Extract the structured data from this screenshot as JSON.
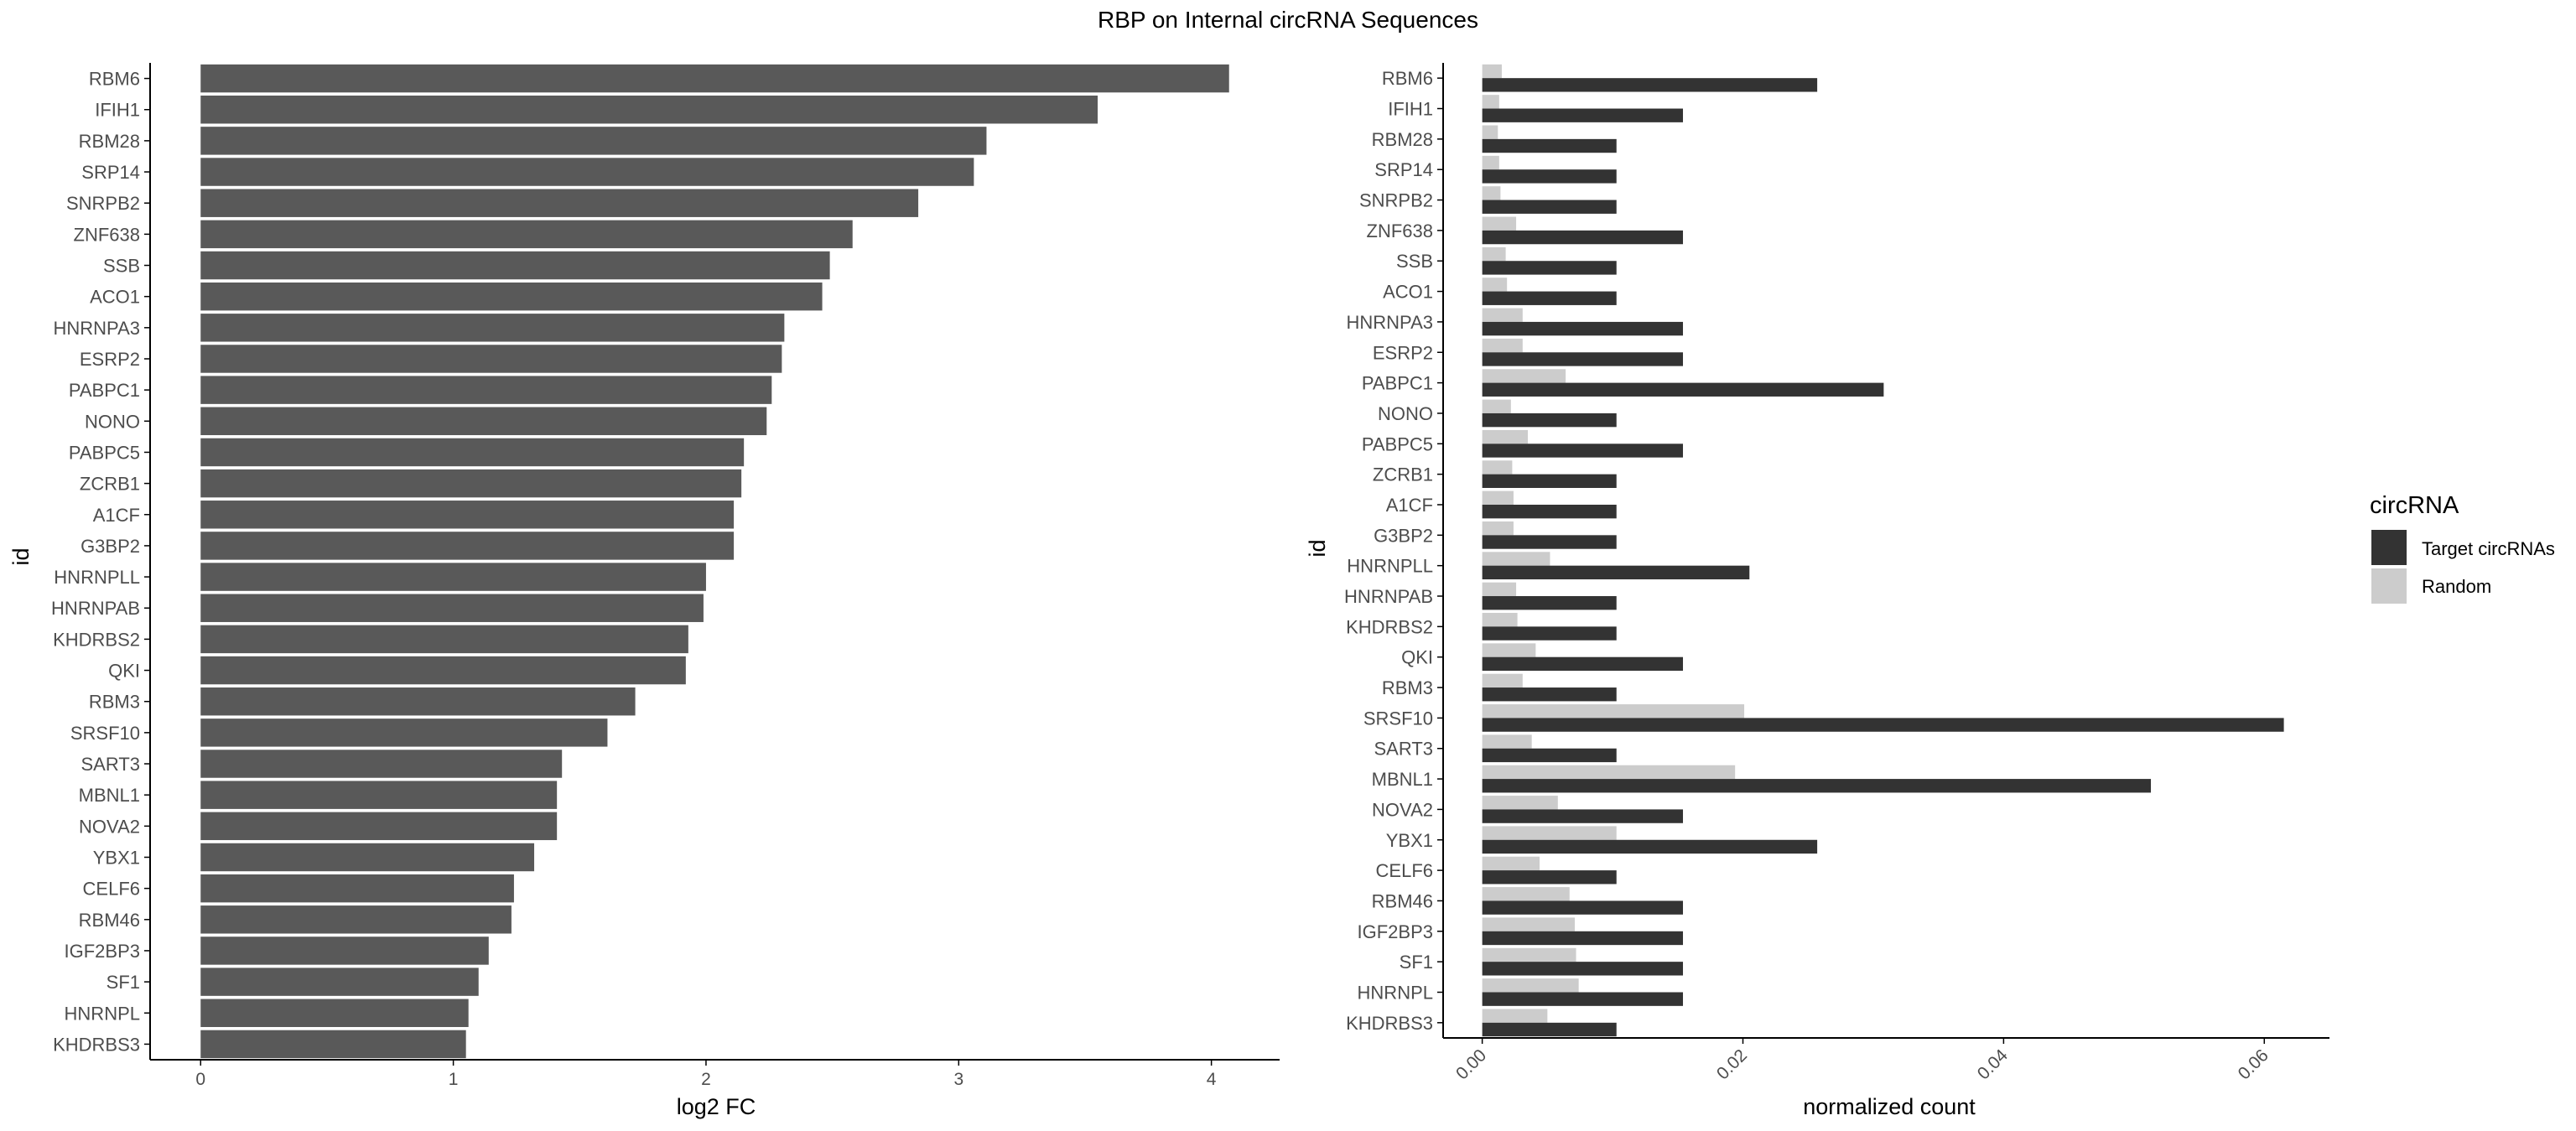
{
  "title": "RBP on Internal circRNA Sequences",
  "colors": {
    "bar_left": "#595959",
    "target": "#333333",
    "random": "#cccccc",
    "axis": "#000000",
    "tick_label": "#4d4d4d"
  },
  "chart_data": [
    {
      "type": "bar",
      "orientation": "horizontal",
      "title": "",
      "xlabel": "log2 FC",
      "ylabel": "id",
      "xlim": [
        -0.2,
        4.27
      ],
      "xticks": [
        0,
        1,
        2,
        3,
        4
      ],
      "tick_labels": [
        "0",
        "1",
        "2",
        "3",
        "4"
      ],
      "grid": false,
      "categories": [
        "RBM6",
        "IFIH1",
        "RBM28",
        "SRP14",
        "SNRPB2",
        "ZNF638",
        "SSB",
        "ACO1",
        "HNRNPA3",
        "ESRP2",
        "PABPC1",
        "NONO",
        "PABPC5",
        "ZCRB1",
        "A1CF",
        "G3BP2",
        "HNRNPLL",
        "HNRNPAB",
        "KHDRBS2",
        "QKI",
        "RBM3",
        "SRSF10",
        "SART3",
        "MBNL1",
        "NOVA2",
        "YBX1",
        "CELF6",
        "RBM46",
        "IGF2BP3",
        "SF1",
        "HNRNPL",
        "KHDRBS3"
      ],
      "values": [
        4.07,
        3.55,
        3.11,
        3.06,
        2.84,
        2.58,
        2.49,
        2.46,
        2.31,
        2.3,
        2.26,
        2.24,
        2.15,
        2.14,
        2.11,
        2.11,
        2.0,
        1.99,
        1.93,
        1.92,
        1.72,
        1.61,
        1.43,
        1.41,
        1.41,
        1.32,
        1.24,
        1.23,
        1.14,
        1.1,
        1.06,
        1.05
      ]
    },
    {
      "type": "bar",
      "orientation": "horizontal",
      "grouped": true,
      "title": "",
      "xlabel": "normalized count",
      "ylabel": "id",
      "xlim": [
        -0.003,
        0.065
      ],
      "xticks": [
        0.0,
        0.02,
        0.04,
        0.06
      ],
      "tick_labels": [
        "0.00",
        "0.02",
        "0.04",
        "0.06"
      ],
      "grid": false,
      "legend": {
        "title": "circRNA",
        "position": "right"
      },
      "categories": [
        "RBM6",
        "IFIH1",
        "RBM28",
        "SRP14",
        "SNRPB2",
        "ZNF638",
        "SSB",
        "ACO1",
        "HNRNPA3",
        "ESRP2",
        "PABPC1",
        "NONO",
        "PABPC5",
        "ZCRB1",
        "A1CF",
        "G3BP2",
        "HNRNPLL",
        "HNRNPAB",
        "KHDRBS2",
        "QKI",
        "RBM3",
        "SRSF10",
        "SART3",
        "MBNL1",
        "NOVA2",
        "YBX1",
        "CELF6",
        "RBM46",
        "IGF2BP3",
        "SF1",
        "HNRNPL",
        "KHDRBS3"
      ],
      "series": [
        {
          "name": "Target circRNAs",
          "values": [
            0.0257,
            0.0154,
            0.0103,
            0.0103,
            0.0103,
            0.0154,
            0.0103,
            0.0103,
            0.0154,
            0.0154,
            0.0308,
            0.0103,
            0.0154,
            0.0103,
            0.0103,
            0.0103,
            0.0205,
            0.0103,
            0.0103,
            0.0154,
            0.0103,
            0.0615,
            0.0103,
            0.0513,
            0.0154,
            0.0257,
            0.0103,
            0.0154,
            0.0154,
            0.0154,
            0.0154,
            0.0103
          ]
        },
        {
          "name": "Random",
          "values": [
            0.0015,
            0.0013,
            0.0012,
            0.0013,
            0.0014,
            0.0026,
            0.0018,
            0.0019,
            0.0031,
            0.0031,
            0.0064,
            0.0022,
            0.0035,
            0.0023,
            0.0024,
            0.0024,
            0.0052,
            0.0026,
            0.0027,
            0.0041,
            0.0031,
            0.0201,
            0.0038,
            0.0194,
            0.0058,
            0.0103,
            0.0044,
            0.0067,
            0.0071,
            0.0072,
            0.0074,
            0.005
          ]
        }
      ]
    }
  ]
}
